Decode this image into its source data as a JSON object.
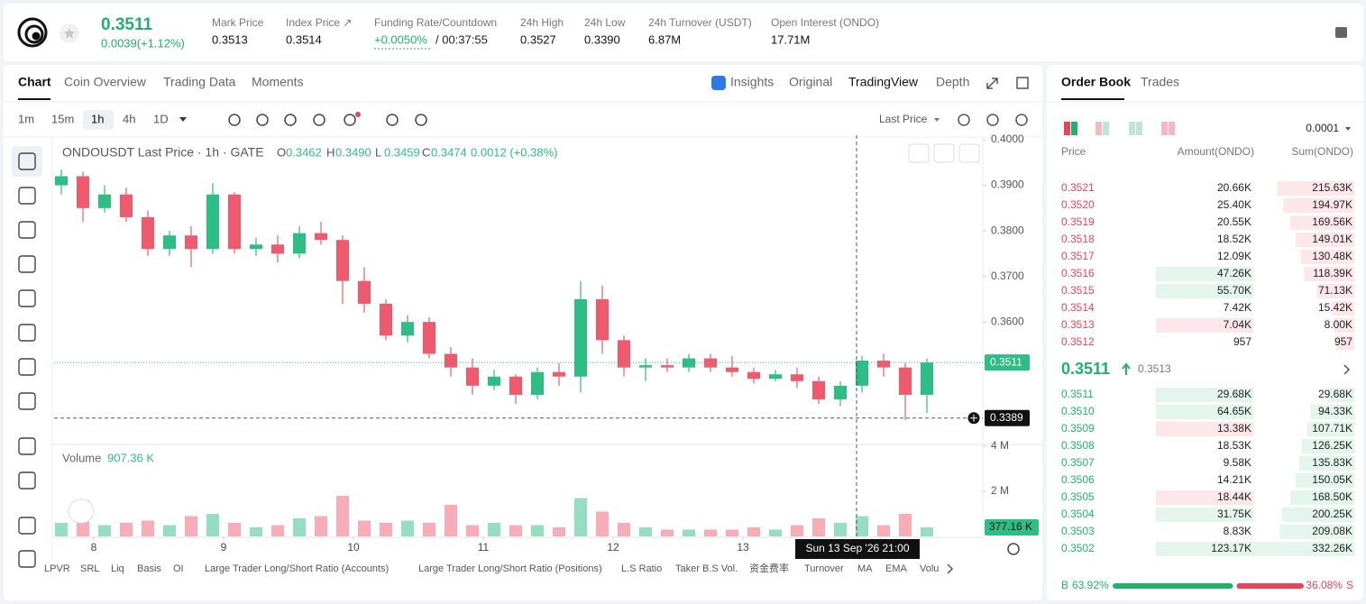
{
  "header": {
    "price": "0.3511",
    "change": "0.0039(+1.12%)",
    "stats": [
      {
        "label": "Mark Price",
        "value": "0.3513"
      },
      {
        "label": "Index Price ↗",
        "value": "0.3514"
      },
      {
        "label": "Funding Rate/Countdown",
        "value": "+0.0050%",
        "extra": "/ 00:37:55"
      },
      {
        "label": "24h High",
        "value": "0.3527"
      },
      {
        "label": "24h Low",
        "value": "0.3390"
      },
      {
        "label": "24h Turnover (USDT)",
        "value": "6.87M"
      },
      {
        "label": "Open Interest (ONDO)",
        "value": "17.71M"
      }
    ]
  },
  "chart_tabs": [
    "Chart",
    "Coin Overview",
    "Trading Data",
    "Moments"
  ],
  "view_tabs": [
    "Insights",
    "Original",
    "TradingView",
    "Depth"
  ],
  "intervals": [
    "1m",
    "15m",
    "1h",
    "4h",
    "1D"
  ],
  "price_type": "Last Price",
  "chart_data": {
    "type": "candlestick",
    "symbol": "ONDOUSDT Last Price · 1h · GATE",
    "ohlc_legend": [
      {
        "label": "O",
        "value": "0.3462"
      },
      {
        "label": "H",
        "value": "0.3490"
      },
      {
        "label": "L",
        "value": "0.3459"
      },
      {
        "label": "C",
        "value": "0.3474"
      }
    ],
    "legend_change": "0.0012 (+0.38%)",
    "up_color": "#2ebd85",
    "down_color": "#ef5a6f",
    "x": [
      -6,
      -2,
      2,
      6,
      10,
      14,
      18,
      22,
      26,
      30,
      34,
      38,
      42,
      46,
      50,
      54,
      58,
      62,
      66,
      70,
      74,
      78,
      82,
      86,
      90,
      94,
      98,
      102,
      106,
      110,
      114,
      118,
      122,
      126,
      130,
      134,
      138,
      142,
      146,
      150,
      154
    ],
    "open": [
      0.39,
      0.392,
      0.385,
      0.388,
      0.383,
      0.376,
      0.379,
      0.376,
      0.388,
      0.376,
      0.377,
      0.375,
      0.3795,
      0.378,
      0.369,
      0.364,
      0.357,
      0.36,
      0.353,
      0.35,
      0.346,
      0.348,
      0.344,
      0.349,
      0.348,
      0.365,
      0.356,
      0.35,
      0.3505,
      0.35,
      0.352,
      0.35,
      0.349,
      0.3475,
      0.3485,
      0.347,
      0.343,
      0.346,
      0.3515,
      0.35,
      0.344
    ],
    "high": [
      0.3935,
      0.393,
      0.39,
      0.3895,
      0.3845,
      0.38,
      0.381,
      0.3905,
      0.3885,
      0.3785,
      0.379,
      0.381,
      0.382,
      0.379,
      0.372,
      0.365,
      0.3615,
      0.361,
      0.3545,
      0.352,
      0.3495,
      0.3485,
      0.35,
      0.351,
      0.369,
      0.368,
      0.357,
      0.352,
      0.352,
      0.353,
      0.353,
      0.3525,
      0.35,
      0.3495,
      0.35,
      0.348,
      0.347,
      0.3525,
      0.353,
      0.351,
      0.352
    ],
    "low": [
      0.388,
      0.382,
      0.384,
      0.382,
      0.3745,
      0.3745,
      0.372,
      0.375,
      0.375,
      0.3745,
      0.373,
      0.374,
      0.377,
      0.364,
      0.362,
      0.356,
      0.3555,
      0.352,
      0.348,
      0.344,
      0.345,
      0.342,
      0.343,
      0.346,
      0.3445,
      0.353,
      0.348,
      0.347,
      0.349,
      0.349,
      0.349,
      0.348,
      0.3465,
      0.347,
      0.3455,
      0.342,
      0.3415,
      0.3445,
      0.348,
      0.3385,
      0.34
    ],
    "close": [
      0.392,
      0.385,
      0.388,
      0.383,
      0.376,
      0.379,
      0.376,
      0.388,
      0.376,
      0.377,
      0.375,
      0.3795,
      0.378,
      0.369,
      0.364,
      0.357,
      0.36,
      0.353,
      0.35,
      0.346,
      0.348,
      0.344,
      0.349,
      0.348,
      0.365,
      0.356,
      0.35,
      0.3505,
      0.35,
      0.352,
      0.35,
      0.349,
      0.3475,
      0.3485,
      0.347,
      0.343,
      0.346,
      0.3515,
      0.35,
      0.344,
      0.3511
    ],
    "volume": [
      600000,
      1600000,
      500000,
      600000,
      700000,
      500000,
      900000,
      1000000,
      600000,
      400000,
      500000,
      800000,
      900000,
      1800000,
      700000,
      600000,
      700000,
      600000,
      1400000,
      500000,
      600000,
      500000,
      500000,
      400000,
      1700000,
      1100000,
      600000,
      400000,
      300000,
      300000,
      300000,
      300000,
      400000,
      300000,
      500000,
      800000,
      600000,
      900000,
      500000,
      1000000,
      400000
    ],
    "xlim": [
      -7.33,
      164.33
    ],
    "xticks": [
      {
        "value": 0,
        "label": "8"
      },
      {
        "value": 24,
        "label": "9"
      },
      {
        "value": 48,
        "label": "10"
      },
      {
        "value": 72,
        "label": "11"
      },
      {
        "value": 96,
        "label": "12"
      },
      {
        "value": 120,
        "label": "13"
      }
    ],
    "ylim": [
      0.3337,
      0.401
    ],
    "yticks": [
      {
        "value": 0.4,
        "label": "0.4000"
      },
      {
        "value": 0.39,
        "label": "0.3900"
      },
      {
        "value": 0.38,
        "label": "0.3800"
      },
      {
        "value": 0.37,
        "label": "0.3700"
      },
      {
        "value": 0.36,
        "label": "0.3600"
      }
    ],
    "volume_title": "Volume",
    "volume_legend": "907.36 K",
    "volume_tag": "377.16 K",
    "vol_ylim": [
      0,
      4000000
    ],
    "vol_yticks": [
      {
        "value": 4000000,
        "label": "4 M"
      },
      {
        "value": 2000000,
        "label": "2 M"
      }
    ],
    "last_price": 0.3511,
    "crosshair": {
      "price": 0.3389,
      "x": 141,
      "x_label": "Sun 13 Sep '26   21:00"
    }
  },
  "indicators": [
    "LPVR",
    "SRL",
    "Liq",
    "Basis",
    "OI",
    "Large Trader Long/Short Ratio (Accounts)",
    "Large Trader Long/Short Ratio (Positions)",
    "L.S Ratio",
    "Taker B.S Vol.",
    "资金费率",
    "Turnover",
    "MA",
    "EMA",
    "Volu"
  ],
  "order_book": {
    "tabs": [
      "Order Book",
      "Trades"
    ],
    "precision": "0.0001",
    "headers": [
      "Price",
      "Amount(ONDO)",
      "Sum(ONDO)"
    ],
    "asks": [
      {
        "price": "0.3521",
        "amount": "20.66K",
        "sum": "215.63K"
      },
      {
        "price": "0.3520",
        "amount": "25.40K",
        "sum": "194.97K"
      },
      {
        "price": "0.3519",
        "amount": "20.55K",
        "sum": "169.56K"
      },
      {
        "price": "0.3518",
        "amount": "18.52K",
        "sum": "149.01K"
      },
      {
        "price": "0.3517",
        "amount": "12.09K",
        "sum": "130.48K"
      },
      {
        "price": "0.3516",
        "amount": "47.26K",
        "sum": "118.39K",
        "highlight": "green"
      },
      {
        "price": "0.3515",
        "amount": "55.70K",
        "sum": "71.13K",
        "highlight": "green"
      },
      {
        "price": "0.3514",
        "amount": "7.42K",
        "sum": "15.42K"
      },
      {
        "price": "0.3513",
        "amount": "7.04K",
        "sum": "8.00K",
        "highlight": "red"
      },
      {
        "price": "0.3512",
        "amount": "957",
        "sum": "957"
      }
    ],
    "mid_price": "0.3511",
    "mark_price": "0.3513",
    "bids": [
      {
        "price": "0.3511",
        "amount": "29.68K",
        "sum": "29.68K",
        "highlight": "green"
      },
      {
        "price": "0.3510",
        "amount": "64.65K",
        "sum": "94.33K",
        "highlight": "green"
      },
      {
        "price": "0.3509",
        "amount": "13.38K",
        "sum": "107.71K",
        "highlight": "red"
      },
      {
        "price": "0.3508",
        "amount": "18.53K",
        "sum": "126.25K"
      },
      {
        "price": "0.3507",
        "amount": "9.58K",
        "sum": "135.83K"
      },
      {
        "price": "0.3506",
        "amount": "14.21K",
        "sum": "150.05K"
      },
      {
        "price": "0.3505",
        "amount": "18.44K",
        "sum": "168.50K",
        "highlight": "red"
      },
      {
        "price": "0.3504",
        "amount": "31.75K",
        "sum": "200.25K",
        "highlight": "green"
      },
      {
        "price": "0.3503",
        "amount": "8.83K",
        "sum": "209.08K"
      },
      {
        "price": "0.3502",
        "amount": "123.17K",
        "sum": "332.26K",
        "highlight": "green"
      }
    ],
    "buy_label": "B",
    "buy_ratio": "63.92%",
    "sell_ratio": "36.08%",
    "sell_label": "S"
  }
}
